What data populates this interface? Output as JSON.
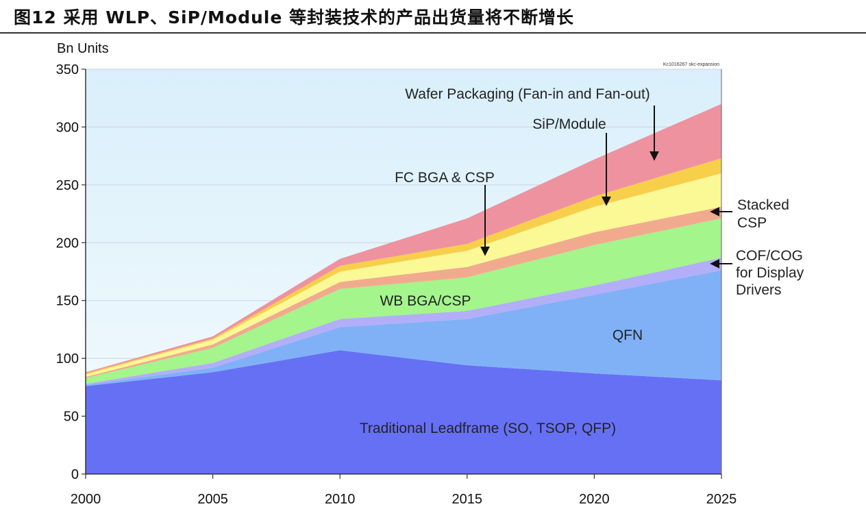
{
  "figure": {
    "title": "图12 采用 WLP、SiP/Module 等封装技术的产品出货量将不断增长"
  },
  "chart_data": {
    "type": "area",
    "stacked": true,
    "ylabel": "Bn Units",
    "watermark": "Kc1016267 skc-expansion",
    "ylim": [
      0,
      350
    ],
    "yticks": [
      0,
      50,
      100,
      150,
      200,
      250,
      300,
      350
    ],
    "x": [
      2000,
      2005,
      2010,
      2015,
      2020,
      2025
    ],
    "xticks": [
      2000,
      2005,
      2010,
      2015,
      2020,
      2025
    ],
    "series": [
      {
        "name": "Traditional Leadframe (SO, TSOP, QFP)",
        "color": "#6670f5",
        "values": [
          76,
          88,
          107,
          94,
          87,
          81
        ]
      },
      {
        "name": "QFN",
        "color": "#80b1f7",
        "values": [
          1,
          4,
          20,
          40,
          68,
          95
        ]
      },
      {
        "name": "COF/COG for Display Drivers",
        "color": "#b3aef8",
        "values": [
          1,
          4,
          7,
          7,
          8,
          11
        ]
      },
      {
        "name": "WB BGA/CSP",
        "color": "#a3f58c",
        "values": [
          5,
          13,
          26,
          29,
          35,
          34
        ]
      },
      {
        "name": "Stacked CSP",
        "color": "#f2aa8e",
        "values": [
          1,
          3,
          6,
          9,
          11,
          10
        ]
      },
      {
        "name": "FC BGA & CSP",
        "color": "#fbf896",
        "values": [
          2,
          4,
          9,
          14,
          22,
          29
        ]
      },
      {
        "name": "SiP/Module",
        "color": "#f8cf4a",
        "values": [
          1,
          1,
          5,
          6,
          9,
          13
        ]
      },
      {
        "name": "Wafer Packaging (Fan-in and Fan-out)",
        "color": "#ef929f",
        "values": [
          1,
          2,
          6,
          22,
          32,
          47
        ]
      }
    ],
    "annotations": [
      {
        "key": "wafer",
        "lines": [
          "Wafer Packaging (Fan-in and Fan-out)"
        ]
      },
      {
        "key": "sip",
        "lines": [
          "SiP/Module"
        ]
      },
      {
        "key": "fcbga",
        "lines": [
          "FC BGA & CSP"
        ]
      },
      {
        "key": "stacked",
        "lines": [
          "Stacked",
          "CSP"
        ]
      },
      {
        "key": "cof",
        "lines": [
          "COF/COG",
          "for Display",
          "Drivers"
        ]
      },
      {
        "key": "wbbga",
        "lines": [
          "WB BGA/CSP"
        ]
      },
      {
        "key": "qfn",
        "lines": [
          "QFN"
        ]
      },
      {
        "key": "leadframe",
        "lines": [
          "Traditional Leadframe (SO, TSOP, QFP)"
        ]
      }
    ]
  }
}
